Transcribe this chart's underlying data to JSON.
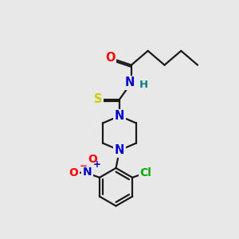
{
  "bg_color": "#e8e8e8",
  "bond_color": "#1a1a1a",
  "atom_colors": {
    "O": "#ff0000",
    "N": "#0000cc",
    "S": "#cccc00",
    "Cl": "#00aa00",
    "H": "#008080",
    "Ominus": "#ff0000",
    "Nplus": "#0000cc"
  },
  "font_size": 9.5,
  "line_width": 1.6
}
